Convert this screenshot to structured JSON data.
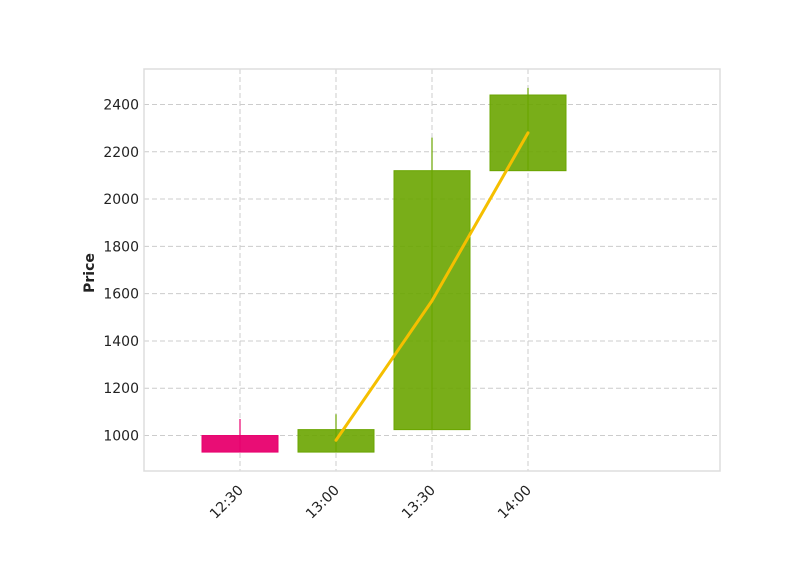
{
  "chart_data": {
    "type": "candlestick",
    "title": "",
    "xlabel": "",
    "ylabel": "Price",
    "x_ticks": [
      "12:30",
      "13:00",
      "13:30",
      "14:00"
    ],
    "y_ticks": [
      1000,
      1200,
      1400,
      1600,
      1800,
      2000,
      2200,
      2400
    ],
    "ylim": [
      850,
      2550
    ],
    "grid": true,
    "candles": [
      {
        "time": "12:30",
        "open": 1000,
        "high": 1070,
        "low": 930,
        "close": 930
      },
      {
        "time": "13:00",
        "open": 930,
        "high": 1090,
        "low": 930,
        "close": 1025
      },
      {
        "time": "13:30",
        "open": 1025,
        "high": 2260,
        "low": 1025,
        "close": 2120
      },
      {
        "time": "14:00",
        "open": 2120,
        "high": 2470,
        "low": 2120,
        "close": 2440
      }
    ],
    "line_series": {
      "x": [
        "13:00",
        "13:30",
        "14:00"
      ],
      "values": [
        980,
        1570,
        2280
      ]
    },
    "colors": {
      "up": "#6aa500",
      "down": "#e8006e",
      "line": "#f5bf00",
      "grid": "#cccccc",
      "frame": "#dddddd"
    }
  }
}
